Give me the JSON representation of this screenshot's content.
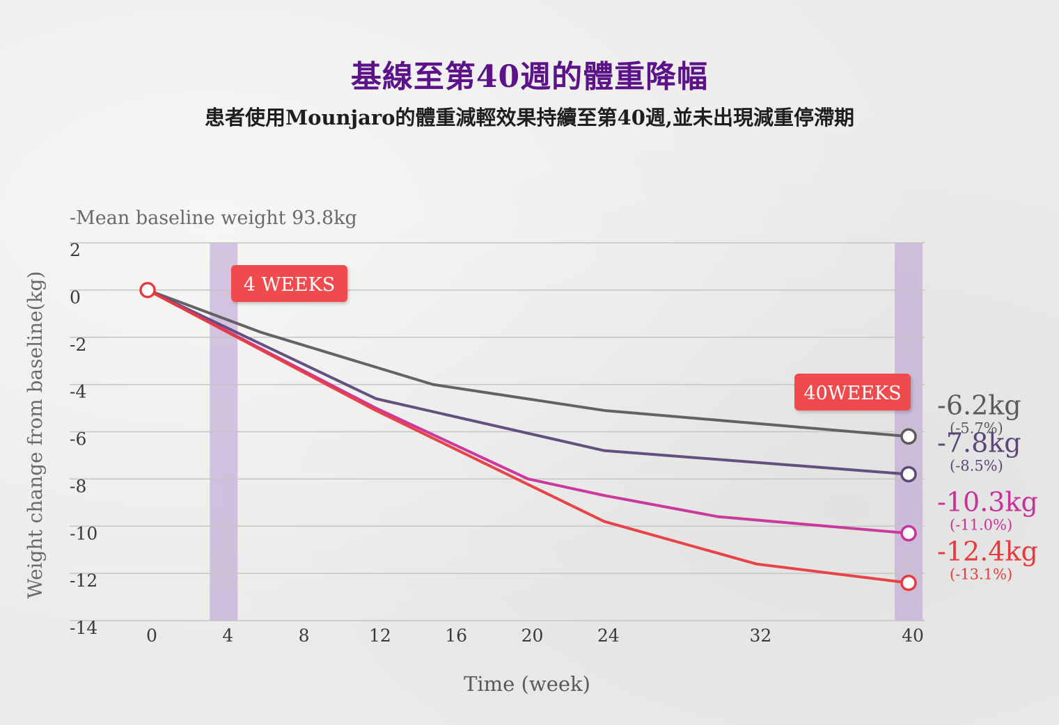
{
  "header": {
    "title": "基線至第40週的體重降幅",
    "subtitle": "患者使用Mounjaro的體重減輕效果持續至第40週,並未出現減重停滯期"
  },
  "chart_data": {
    "type": "line",
    "title": "基線至第40週的體重降幅",
    "subtitle": "患者使用Mounjaro的體重減輕效果持續至第40週,並未出現減重停滯期",
    "note": "-Mean baseline weight 93.8kg",
    "xlabel": "Time (week)",
    "ylabel": "Weight change from baseline(kg)",
    "xlim": [
      0,
      40
    ],
    "ylim": [
      -14,
      2
    ],
    "x_ticks": [
      0,
      4,
      8,
      12,
      16,
      20,
      24,
      32,
      40
    ],
    "y_ticks": [
      2,
      0,
      -2,
      -4,
      -6,
      -8,
      -10,
      -12,
      -14
    ],
    "grid": "horizontal",
    "highlights": [
      {
        "week": 4,
        "label": "4 WEEKS"
      },
      {
        "week": 40,
        "label": "40WEEKS"
      }
    ],
    "series": [
      {
        "color": "#5b5b5b",
        "x": [
          0,
          6,
          15,
          24,
          40
        ],
        "y": [
          0,
          -1.8,
          -4.0,
          -5.1,
          -6.2
        ],
        "end_label": "-6.2kg",
        "end_pct": "(-5.7%)"
      },
      {
        "color": "#5c4878",
        "x": [
          0,
          12,
          24,
          40
        ],
        "y": [
          0,
          -4.6,
          -6.8,
          -7.8
        ],
        "end_label": "-7.8kg",
        "end_pct": "(-8.5%)"
      },
      {
        "color": "#c8309a",
        "x": [
          0,
          12,
          20,
          24,
          30,
          40
        ],
        "y": [
          0,
          -5.0,
          -8.0,
          -8.7,
          -9.6,
          -10.3
        ],
        "end_label": "-10.3kg",
        "end_pct": "(-11.0%)"
      },
      {
        "color": "#e83a3d",
        "x": [
          0,
          12,
          24,
          32,
          40
        ],
        "y": [
          0,
          -5.1,
          -9.8,
          -11.6,
          -12.4
        ],
        "end_label": "-12.4kg",
        "end_pct": "(-13.1%)"
      }
    ]
  }
}
